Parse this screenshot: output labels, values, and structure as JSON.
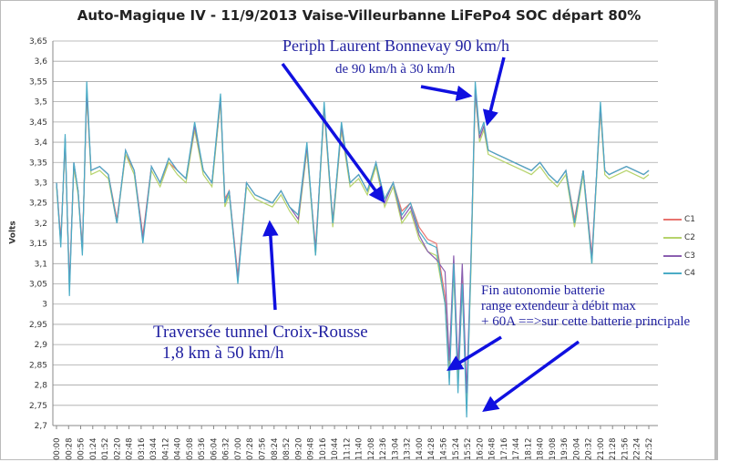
{
  "chart_data": {
    "type": "line",
    "title": "Auto-Magique IV - 11/9/2013 Vaise-Villeurbanne LiFePo4 SOC départ 80%",
    "xlabel": "",
    "ylabel": "Volts",
    "ylim": [
      2.7,
      3.65
    ],
    "yticks": [
      "3,65",
      "3,6",
      "3,55",
      "3,5",
      "3,45",
      "3,4",
      "3,35",
      "3,3",
      "3,25",
      "3,2",
      "3,15",
      "3,1",
      "3,05",
      "3",
      "2,95",
      "2,9",
      "2,85",
      "2,8",
      "2,75",
      "2,7"
    ],
    "xlim_minutes": [
      0,
      1372
    ],
    "xticks": [
      "00:00",
      "00:28",
      "00:56",
      "01:24",
      "01:52",
      "02:20",
      "02:48",
      "03:16",
      "03:44",
      "04:12",
      "04:40",
      "05:08",
      "05:36",
      "06:04",
      "06:32",
      "07:00",
      "07:28",
      "07:56",
      "08:24",
      "08:52",
      "09:20",
      "09:48",
      "10:16",
      "10:44",
      "11:12",
      "11:40",
      "12:08",
      "12:36",
      "13:04",
      "13:32",
      "14:00",
      "14:28",
      "14:56",
      "15:24",
      "15:52",
      "16:20",
      "16:48",
      "17:16",
      "17:44",
      "18:12",
      "18:40",
      "19:08",
      "19:36",
      "20:04",
      "20:32",
      "21:00",
      "21:28",
      "21:56",
      "22:24",
      "22:52"
    ],
    "x": [
      0,
      10,
      20,
      30,
      40,
      50,
      60,
      70,
      80,
      100,
      120,
      140,
      160,
      180,
      200,
      220,
      240,
      260,
      280,
      300,
      320,
      340,
      360,
      380,
      390,
      400,
      420,
      440,
      460,
      480,
      500,
      520,
      540,
      560,
      580,
      600,
      620,
      640,
      660,
      680,
      700,
      720,
      740,
      760,
      780,
      800,
      820,
      840,
      860,
      880,
      900,
      910,
      920,
      930,
      940,
      950,
      960,
      970,
      980,
      990,
      1000,
      1020,
      1040,
      1060,
      1080,
      1100,
      1120,
      1140,
      1160,
      1180,
      1200,
      1220,
      1240,
      1260,
      1270,
      1280,
      1300,
      1320,
      1340,
      1360,
      1372
    ],
    "series": [
      {
        "name": "C1",
        "color": "#e8736f",
        "values": [
          3.3,
          3.16,
          3.4,
          3.05,
          3.34,
          3.28,
          3.14,
          3.52,
          3.33,
          3.34,
          3.32,
          3.21,
          3.37,
          3.33,
          3.17,
          3.34,
          3.3,
          3.35,
          3.33,
          3.31,
          3.43,
          3.33,
          3.3,
          3.5,
          3.26,
          3.28,
          3.07,
          3.3,
          3.27,
          3.26,
          3.25,
          3.28,
          3.24,
          3.22,
          3.38,
          3.14,
          3.48,
          3.21,
          3.43,
          3.3,
          3.32,
          3.28,
          3.34,
          3.26,
          3.3,
          3.23,
          3.25,
          3.19,
          3.16,
          3.15,
          3.02,
          2.84,
          3.1,
          2.82,
          3.06,
          2.76,
          3.1,
          3.52,
          3.41,
          3.44,
          3.38,
          3.37,
          3.36,
          3.35,
          3.34,
          3.33,
          3.35,
          3.32,
          3.3,
          3.33,
          3.21,
          3.33,
          3.12,
          3.48,
          3.33,
          3.32,
          3.33,
          3.34,
          3.33,
          3.32,
          3.33
        ]
      },
      {
        "name": "C2",
        "color": "#b6d36b",
        "values": [
          3.29,
          3.15,
          3.4,
          3.04,
          3.34,
          3.27,
          3.13,
          3.52,
          3.32,
          3.33,
          3.31,
          3.2,
          3.37,
          3.32,
          3.16,
          3.33,
          3.29,
          3.35,
          3.32,
          3.3,
          3.43,
          3.32,
          3.29,
          3.5,
          3.24,
          3.27,
          3.06,
          3.29,
          3.26,
          3.25,
          3.24,
          3.27,
          3.23,
          3.2,
          3.38,
          3.12,
          3.48,
          3.19,
          3.43,
          3.29,
          3.31,
          3.27,
          3.34,
          3.24,
          3.29,
          3.2,
          3.23,
          3.16,
          3.13,
          3.12,
          3.0,
          2.82,
          3.08,
          2.8,
          3.04,
          2.75,
          3.08,
          3.52,
          3.4,
          3.43,
          3.37,
          3.36,
          3.35,
          3.34,
          3.33,
          3.32,
          3.34,
          3.31,
          3.29,
          3.32,
          3.19,
          3.32,
          3.1,
          3.48,
          3.32,
          3.31,
          3.32,
          3.33,
          3.32,
          3.31,
          3.32
        ]
      },
      {
        "name": "C3",
        "color": "#8b5fb0",
        "values": [
          3.3,
          3.15,
          3.41,
          3.04,
          3.35,
          3.28,
          3.13,
          3.53,
          3.33,
          3.34,
          3.32,
          3.2,
          3.38,
          3.33,
          3.16,
          3.34,
          3.3,
          3.36,
          3.33,
          3.31,
          3.44,
          3.33,
          3.3,
          3.51,
          3.25,
          3.28,
          3.06,
          3.3,
          3.27,
          3.26,
          3.25,
          3.28,
          3.24,
          3.21,
          3.39,
          3.13,
          3.49,
          3.2,
          3.44,
          3.3,
          3.32,
          3.28,
          3.35,
          3.25,
          3.3,
          3.21,
          3.24,
          3.17,
          3.13,
          3.11,
          3.08,
          2.86,
          3.12,
          2.84,
          3.1,
          2.78,
          3.11,
          3.53,
          3.41,
          3.44,
          3.38,
          3.37,
          3.36,
          3.35,
          3.34,
          3.33,
          3.35,
          3.32,
          3.3,
          3.33,
          3.2,
          3.33,
          3.11,
          3.49,
          3.33,
          3.32,
          3.33,
          3.34,
          3.33,
          3.32,
          3.33
        ]
      },
      {
        "name": "C4",
        "color": "#4bacc6",
        "values": [
          3.3,
          3.14,
          3.42,
          3.02,
          3.35,
          3.28,
          3.12,
          3.55,
          3.33,
          3.34,
          3.32,
          3.2,
          3.38,
          3.33,
          3.15,
          3.34,
          3.3,
          3.36,
          3.33,
          3.31,
          3.45,
          3.33,
          3.3,
          3.52,
          3.25,
          3.28,
          3.05,
          3.3,
          3.27,
          3.26,
          3.25,
          3.28,
          3.24,
          3.22,
          3.4,
          3.12,
          3.5,
          3.2,
          3.45,
          3.3,
          3.32,
          3.28,
          3.35,
          3.26,
          3.3,
          3.22,
          3.25,
          3.18,
          3.15,
          3.14,
          3.0,
          2.8,
          3.1,
          2.78,
          3.05,
          2.72,
          3.1,
          3.55,
          3.42,
          3.45,
          3.38,
          3.37,
          3.36,
          3.35,
          3.34,
          3.33,
          3.35,
          3.32,
          3.3,
          3.33,
          3.2,
          3.33,
          3.1,
          3.5,
          3.33,
          3.32,
          3.33,
          3.34,
          3.33,
          3.32,
          3.33
        ]
      }
    ],
    "legend": "right",
    "grid": true,
    "annotations": [
      "Periph Laurent Bonnevay 90 km/h",
      "de 90 km/h à 30 km/h",
      "Traversée tunnel Croix-Rousse",
      "1,8 km à 50 km/h",
      "Fin autonomie batterie",
      "range extendeur à débit max",
      "+ 60A ==>sur cette batterie principale"
    ]
  }
}
